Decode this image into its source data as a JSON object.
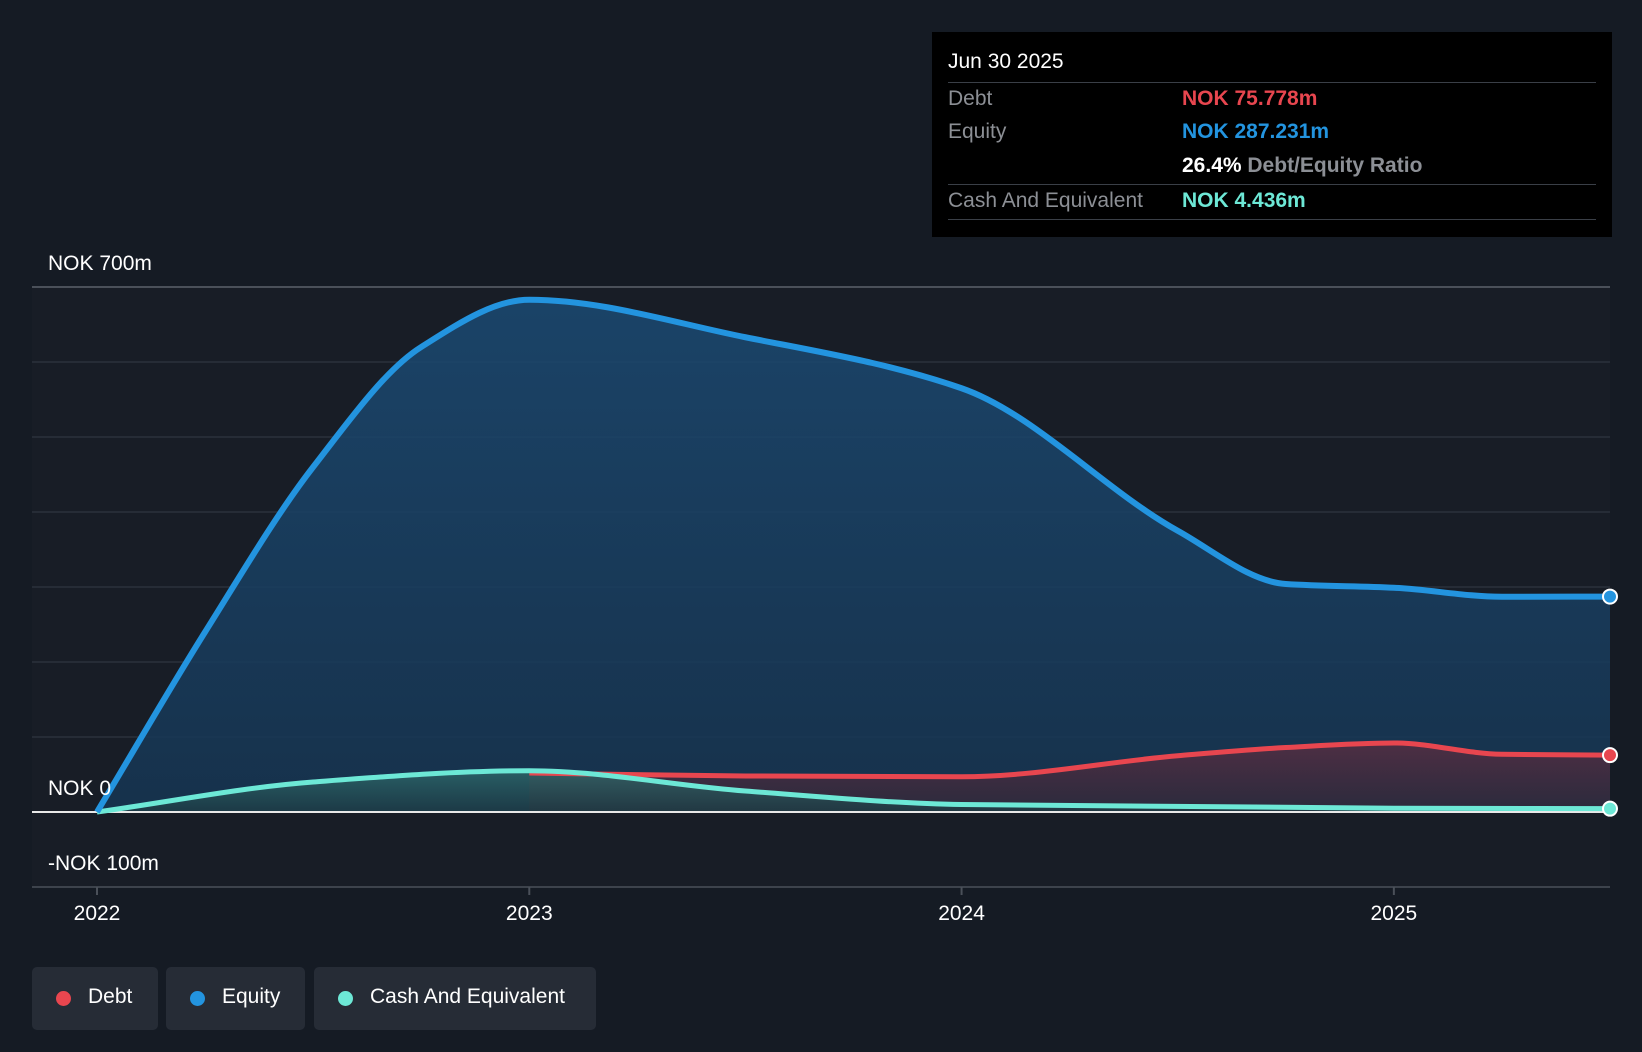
{
  "tooltip": {
    "date": "Jun 30 2025",
    "debt_label": "Debt",
    "debt_value": "NOK 75.778m",
    "equity_label": "Equity",
    "equity_value": "NOK 287.231m",
    "ratio_value": "26.4%",
    "ratio_label": "Debt/Equity Ratio",
    "cash_label": "Cash And Equivalent",
    "cash_value": "NOK 4.436m"
  },
  "legend": {
    "debt": "Debt",
    "equity": "Equity",
    "cash": "Cash And Equivalent"
  },
  "colors": {
    "debt": "#e8464f",
    "equity": "#2394df",
    "cash": "#6de8d6",
    "background": "#151b24"
  },
  "chart_data": {
    "type": "area",
    "title": "",
    "xlabel": "",
    "ylabel": "",
    "y_tick_labels": [
      "NOK 700m",
      "NOK 0",
      "-NOK 100m"
    ],
    "x_tick_labels": [
      "2022",
      "2023",
      "2024",
      "2025"
    ],
    "x_ticks": [
      2022,
      2023,
      2024,
      2025
    ],
    "xlim": [
      2022,
      2025.5
    ],
    "ylim": [
      -100,
      700
    ],
    "series": [
      {
        "name": "Equity",
        "x": [
          2022,
          2022.25,
          2022.5,
          2022.75,
          2023,
          2023.5,
          2024,
          2024.5,
          2024.75,
          2025,
          2025.25,
          2025.5
        ],
        "values": [
          0,
          240,
          460,
          620,
          683,
          633,
          565,
          375,
          304,
          299,
          287,
          287.231
        ]
      },
      {
        "name": "Debt",
        "x": [
          2023,
          2023.5,
          2024,
          2024.5,
          2024.75,
          2025,
          2025.25,
          2025.5
        ],
        "values": [
          52,
          48,
          47,
          75,
          86,
          92,
          77,
          75.778
        ]
      },
      {
        "name": "Cash And Equivalent",
        "x": [
          2022,
          2022.5,
          2023,
          2023.5,
          2024,
          2025,
          2025.5
        ],
        "values": [
          0,
          40,
          55,
          28,
          10,
          5,
          4.436
        ]
      }
    ]
  }
}
